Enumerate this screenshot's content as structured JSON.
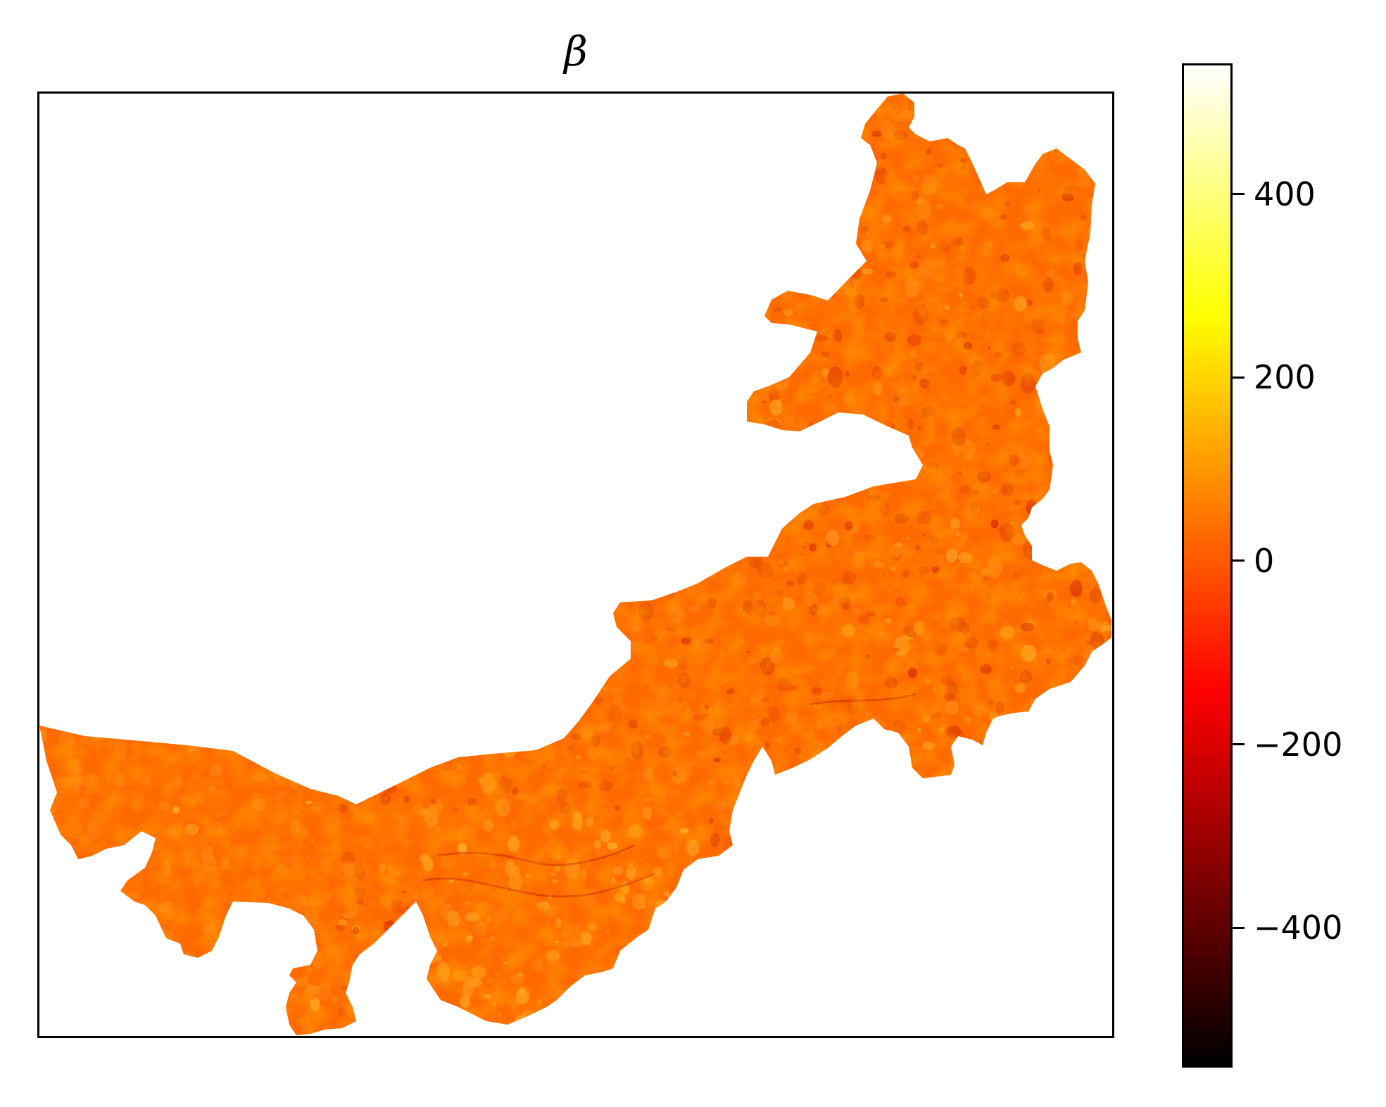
{
  "map": {
    "title": "β",
    "type": "raster-heatmap",
    "region_fill_color": "#ff6a00",
    "texture_colors": [
      "#e84a00",
      "#ff7d10",
      "#ff9a20",
      "#d83000",
      "#ffb030"
    ]
  },
  "colorbar": {
    "colormap": "hot",
    "range": [
      -550,
      540
    ],
    "ticks": [
      {
        "value": 400,
        "label": "400"
      },
      {
        "value": 200,
        "label": "200"
      },
      {
        "value": 0,
        "label": "0"
      },
      {
        "value": -200,
        "label": "−200"
      },
      {
        "value": -400,
        "label": "−400"
      }
    ],
    "gradient_stops": [
      "#000000",
      "#550000",
      "#aa0000",
      "#ff0000",
      "#ff5500",
      "#ffaa00",
      "#ffff00",
      "#ffff80",
      "#ffffff"
    ]
  }
}
